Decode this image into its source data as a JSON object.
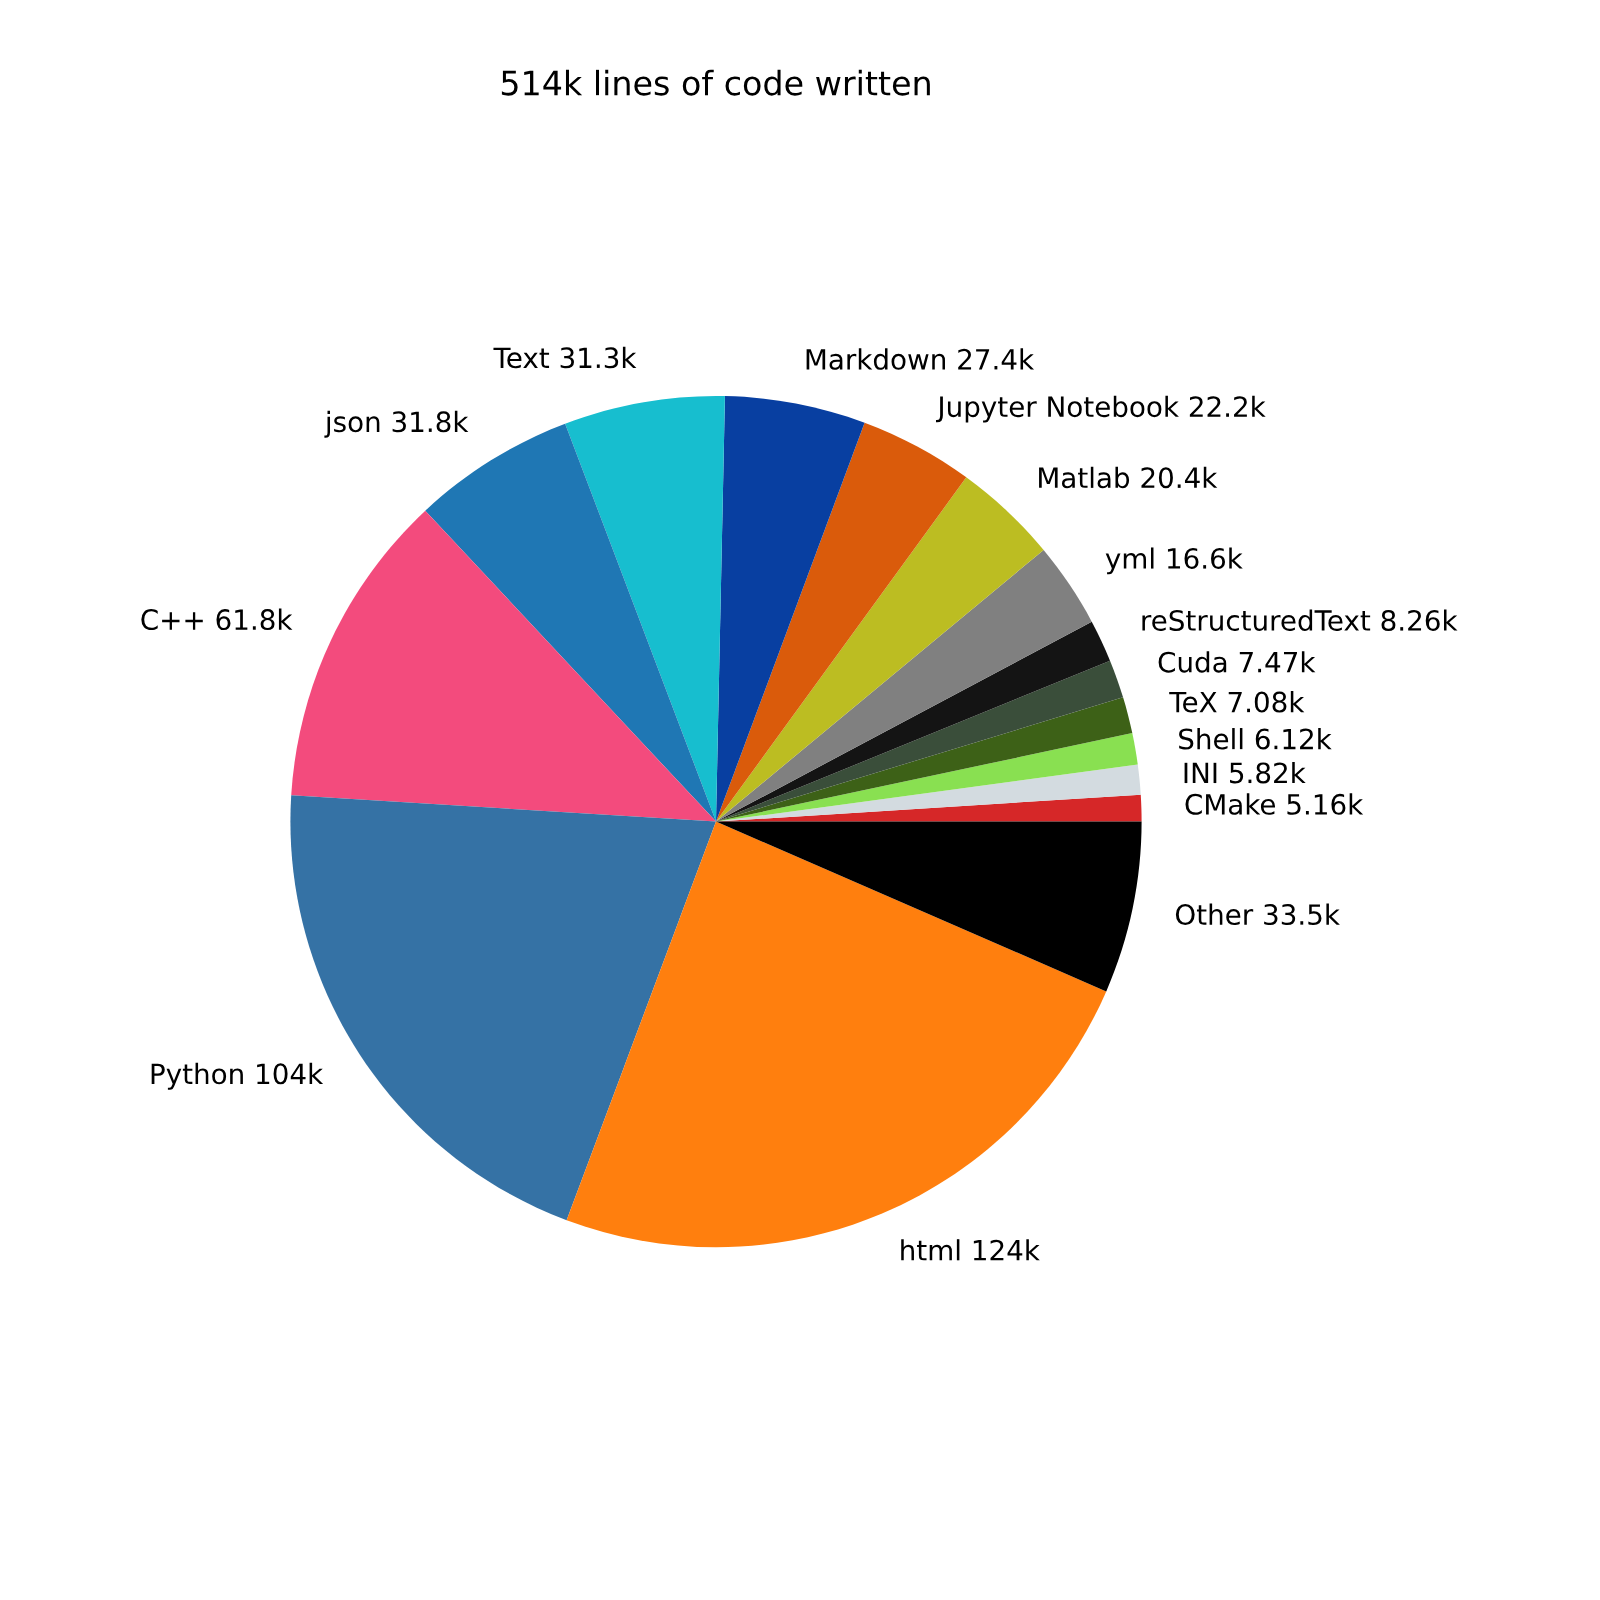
{
  "chart_data": {
    "type": "pie",
    "title": "514k lines of code written",
    "categories": [
      "CMake",
      "INI",
      "Shell",
      "TeX",
      "Cuda",
      "reStructuredText",
      "yml",
      "Matlab",
      "Jupyter Notebook",
      "Markdown",
      "Text",
      "json",
      "C++",
      "Python",
      "html",
      "Other"
    ],
    "values": [
      5.16,
      5.82,
      6.12,
      7.08,
      7.47,
      8.26,
      16.6,
      20.4,
      22.2,
      27.4,
      31.3,
      31.8,
      61.8,
      104,
      124,
      33.5
    ],
    "value_labels": [
      "5.16k",
      "5.82k",
      "6.12k",
      "7.08k",
      "7.47k",
      "8.26k",
      "16.6k",
      "20.4k",
      "22.2k",
      "27.4k",
      "31.3k",
      "31.8k",
      "61.8k",
      "104k",
      "124k",
      "33.5k"
    ],
    "colors": [
      "#d62728",
      "#d3dbe0",
      "#89e051",
      "#3d6117",
      "#3a4e3a",
      "#141414",
      "#808080",
      "#bcbd22",
      "#da5b0b",
      "#083fa1",
      "#17becf",
      "#1f77b4",
      "#f34b7d",
      "#3572a5",
      "#ff7f0e",
      "#000000"
    ]
  }
}
